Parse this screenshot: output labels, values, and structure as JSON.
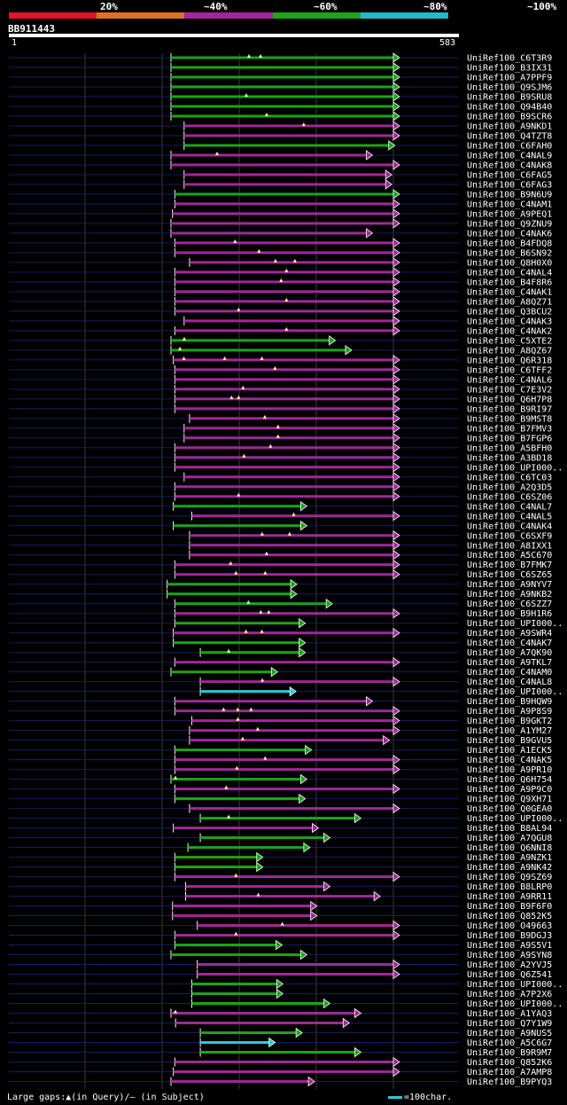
{
  "legend": {
    "segments": [
      {
        "color": "#e8112d"
      },
      {
        "color": "#e0701f"
      },
      {
        "color": "#a0289a"
      },
      {
        "color": "#1aa51a"
      },
      {
        "color": "#23b8c6"
      }
    ],
    "labels": [
      "20%",
      "~40%",
      "~60%",
      "~80%",
      "~100%"
    ]
  },
  "query": {
    "id": "BB911443",
    "start_label": "1",
    "end_label": "583",
    "length": 583
  },
  "hits": [
    {
      "name": "UniRef100_C6T3R9",
      "start": 210,
      "end": 498,
      "color": "#1aa51a",
      "marks": [
        88,
        101
      ]
    },
    {
      "name": "UniRef100_B3IX31",
      "start": 210,
      "end": 498,
      "color": "#1aa51a",
      "marks": []
    },
    {
      "name": "UniRef100_A7PPF9",
      "start": 210,
      "end": 498,
      "color": "#1aa51a",
      "marks": []
    },
    {
      "name": "UniRef100_Q9SJM6",
      "start": 210,
      "end": 498,
      "color": "#1aa51a",
      "marks": []
    },
    {
      "name": "UniRef100_B9SRU8",
      "start": 210,
      "end": 498,
      "color": "#1aa51a",
      "marks": [
        85
      ]
    },
    {
      "name": "UniRef100_Q94B40",
      "start": 210,
      "end": 498,
      "color": "#1aa51a",
      "marks": []
    },
    {
      "name": "UniRef100_B9SCR6",
      "start": 210,
      "end": 498,
      "color": "#1aa51a",
      "marks": [
        108
      ]
    },
    {
      "name": "UniRef100_A9NKD1",
      "start": 227,
      "end": 498,
      "color": "#a0289a",
      "marks": [
        135
      ]
    },
    {
      "name": "UniRef100_Q4TZT8",
      "start": 227,
      "end": 498,
      "color": "#a0289a",
      "marks": []
    },
    {
      "name": "UniRef100_C6FAH0",
      "start": 227,
      "end": 492,
      "color": "#1aa51a",
      "marks": []
    },
    {
      "name": "UniRef100_C4NAL9",
      "start": 210,
      "end": 463,
      "color": "#a0289a",
      "marks": [
        52
      ]
    },
    {
      "name": "UniRef100_C4NAK8",
      "start": 210,
      "end": 498,
      "color": "#a0289a",
      "marks": []
    },
    {
      "name": "UniRef100_C6FAG5",
      "start": 227,
      "end": 488,
      "color": "#a0289a",
      "marks": []
    },
    {
      "name": "UniRef100_C6FAG3",
      "start": 227,
      "end": 488,
      "color": "#a0289a",
      "marks": []
    },
    {
      "name": "UniRef100_B9N6U9",
      "start": 215,
      "end": 498,
      "color": "#1aa51a",
      "marks": []
    },
    {
      "name": "UniRef100_C4NAM1",
      "start": 215,
      "end": 498,
      "color": "#a0289a",
      "marks": []
    },
    {
      "name": "UniRef100_A9PEQ1",
      "start": 212,
      "end": 498,
      "color": "#a0289a",
      "marks": []
    },
    {
      "name": "UniRef100_Q9ZNU9",
      "start": 210,
      "end": 498,
      "color": "#a0289a",
      "marks": []
    },
    {
      "name": "UniRef100_C4NAK6",
      "start": 210,
      "end": 463,
      "color": "#a0289a",
      "marks": []
    },
    {
      "name": "UniRef100_B4FDQ8",
      "start": 215,
      "end": 498,
      "color": "#a0289a",
      "marks": [
        68
      ]
    },
    {
      "name": "UniRef100_B6SN92",
      "start": 215,
      "end": 498,
      "color": "#a0289a",
      "marks": [
        95
      ]
    },
    {
      "name": "UniRef100_Q8H0X0",
      "start": 234,
      "end": 498,
      "color": "#a0289a",
      "marks": [
        97,
        119
      ]
    },
    {
      "name": "UniRef100_C4NAL4",
      "start": 215,
      "end": 498,
      "color": "#a0289a",
      "marks": [
        126
      ]
    },
    {
      "name": "UniRef100_B4F8R6",
      "start": 215,
      "end": 498,
      "color": "#a0289a",
      "marks": [
        120
      ]
    },
    {
      "name": "UniRef100_C4NAK1",
      "start": 215,
      "end": 498,
      "color": "#a0289a",
      "marks": []
    },
    {
      "name": "UniRef100_A8QZ71",
      "start": 215,
      "end": 498,
      "color": "#a0289a",
      "marks": [
        126
      ]
    },
    {
      "name": "UniRef100_Q3BCU2",
      "start": 215,
      "end": 498,
      "color": "#a0289a",
      "marks": [
        72
      ]
    },
    {
      "name": "UniRef100_C4NAK3",
      "start": 227,
      "end": 498,
      "color": "#a0289a",
      "marks": []
    },
    {
      "name": "UniRef100_C4NAK2",
      "start": 215,
      "end": 498,
      "color": "#a0289a",
      "marks": [
        126
      ]
    },
    {
      "name": "UniRef100_C5XTE2",
      "start": 210,
      "end": 415,
      "color": "#1aa51a",
      "marks": [
        15
      ]
    },
    {
      "name": "UniRef100_A8QZ67",
      "start": 210,
      "end": 436,
      "color": "#1aa51a",
      "marks": [
        10
      ]
    },
    {
      "name": "UniRef100_Q6R318",
      "start": 213,
      "end": 498,
      "color": "#a0289a",
      "marks": [
        12,
        58,
        100
      ]
    },
    {
      "name": "UniRef100_C6TFF2",
      "start": 215,
      "end": 498,
      "color": "#a0289a",
      "marks": [
        113
      ]
    },
    {
      "name": "UniRef100_C4NAL6",
      "start": 215,
      "end": 498,
      "color": "#a0289a",
      "marks": []
    },
    {
      "name": "UniRef100_C7E3V2",
      "start": 215,
      "end": 498,
      "color": "#a0289a",
      "marks": [
        77
      ]
    },
    {
      "name": "UniRef100_Q6H7P8",
      "start": 215,
      "end": 498,
      "color": "#a0289a",
      "marks": [
        64,
        72
      ]
    },
    {
      "name": "UniRef100_B9RI97",
      "start": 215,
      "end": 498,
      "color": "#a0289a",
      "marks": []
    },
    {
      "name": "UniRef100_B9MST8",
      "start": 234,
      "end": 498,
      "color": "#a0289a",
      "marks": [
        85
      ]
    },
    {
      "name": "UniRef100_B7FMV3",
      "start": 227,
      "end": 498,
      "color": "#a0289a",
      "marks": [
        106
      ]
    },
    {
      "name": "UniRef100_B7FGP6",
      "start": 227,
      "end": 498,
      "color": "#a0289a",
      "marks": [
        106
      ]
    },
    {
      "name": "UniRef100_A5BFH0",
      "start": 215,
      "end": 498,
      "color": "#a0289a",
      "marks": [
        108
      ]
    },
    {
      "name": "UniRef100_A3BD18",
      "start": 215,
      "end": 498,
      "color": "#a0289a",
      "marks": [
        78
      ]
    },
    {
      "name": "UniRef100_UPI000..",
      "start": 215,
      "end": 498,
      "color": "#a0289a",
      "marks": []
    },
    {
      "name": "UniRef100_C6TC03",
      "start": 227,
      "end": 498,
      "color": "#a0289a",
      "marks": []
    },
    {
      "name": "UniRef100_A2Q3D5",
      "start": 215,
      "end": 498,
      "color": "#a0289a",
      "marks": []
    },
    {
      "name": "UniRef100_C6SZ06",
      "start": 215,
      "end": 498,
      "color": "#a0289a",
      "marks": [
        72
      ]
    },
    {
      "name": "UniRef100_C4NAL7",
      "start": 213,
      "end": 378,
      "color": "#1aa51a",
      "marks": []
    },
    {
      "name": "UniRef100_C4NAL5",
      "start": 237,
      "end": 498,
      "color": "#a0289a",
      "marks": [
        115
      ]
    },
    {
      "name": "UniRef100_C4NAK4",
      "start": 213,
      "end": 378,
      "color": "#1aa51a",
      "marks": []
    },
    {
      "name": "UniRef100_C6SXF9",
      "start": 234,
      "end": 498,
      "color": "#a0289a",
      "marks": [
        82,
        113
      ]
    },
    {
      "name": "UniRef100_A8IXX1",
      "start": 234,
      "end": 498,
      "color": "#a0289a",
      "marks": []
    },
    {
      "name": "UniRef100_A5C670",
      "start": 234,
      "end": 498,
      "color": "#a0289a",
      "marks": [
        87
      ]
    },
    {
      "name": "UniRef100_B7FMK7",
      "start": 215,
      "end": 498,
      "color": "#a0289a",
      "marks": [
        63
      ]
    },
    {
      "name": "UniRef100_C6SZ65",
      "start": 215,
      "end": 498,
      "color": "#a0289a",
      "marks": [
        69,
        102
      ]
    },
    {
      "name": "UniRef100_A9NYV7",
      "start": 205,
      "end": 365,
      "color": "#1aa51a",
      "marks": []
    },
    {
      "name": "UniRef100_A9NKB2",
      "start": 205,
      "end": 365,
      "color": "#1aa51a",
      "marks": []
    },
    {
      "name": "UniRef100_C6SZZ7",
      "start": 215,
      "end": 411,
      "color": "#1aa51a",
      "marks": [
        83
      ]
    },
    {
      "name": "UniRef100_B9H1R6",
      "start": 215,
      "end": 498,
      "color": "#a0289a",
      "marks": [
        97,
        106
      ]
    },
    {
      "name": "UniRef100_UPI000..",
      "start": 215,
      "end": 376,
      "color": "#1aa51a",
      "marks": []
    },
    {
      "name": "UniRef100_A9SWR4",
      "start": 213,
      "end": 498,
      "color": "#a0289a",
      "marks": [
        82,
        100
      ]
    },
    {
      "name": "UniRef100_C4NAK7",
      "start": 213,
      "end": 376,
      "color": "#1aa51a",
      "marks": []
    },
    {
      "name": "UniRef100_A7QK90",
      "start": 248,
      "end": 376,
      "color": "#1aa51a",
      "marks": [
        32
      ]
    },
    {
      "name": "UniRef100_A9TKL7",
      "start": 215,
      "end": 498,
      "color": "#a0289a",
      "marks": []
    },
    {
      "name": "UniRef100_C4NAM0",
      "start": 210,
      "end": 340,
      "color": "#1aa51a",
      "marks": []
    },
    {
      "name": "UniRef100_C4NAL8",
      "start": 248,
      "end": 498,
      "color": "#a0289a",
      "marks": [
        70
      ]
    },
    {
      "name": "UniRef100_UPI000..",
      "start": 248,
      "end": 364,
      "color": "#2ec8d8",
      "marks": []
    },
    {
      "name": "UniRef100_B9HQW9",
      "start": 215,
      "end": 463,
      "color": "#a0289a",
      "marks": []
    },
    {
      "name": "UniRef100_A9P8S9",
      "start": 215,
      "end": 498,
      "color": "#a0289a",
      "marks": [
        55,
        71,
        86
      ]
    },
    {
      "name": "UniRef100_B9GKT2",
      "start": 237,
      "end": 498,
      "color": "#a0289a",
      "marks": [
        52
      ]
    },
    {
      "name": "UniRef100_A1YM27",
      "start": 234,
      "end": 498,
      "color": "#a0289a",
      "marks": [
        77
      ]
    },
    {
      "name": "UniRef100_B9GVU5",
      "start": 234,
      "end": 485,
      "color": "#a0289a",
      "marks": [
        60
      ]
    },
    {
      "name": "UniRef100_A1ECK5",
      "start": 215,
      "end": 384,
      "color": "#1aa51a",
      "marks": []
    },
    {
      "name": "UniRef100_C4NAK5",
      "start": 215,
      "end": 498,
      "color": "#a0289a",
      "marks": [
        102
      ]
    },
    {
      "name": "UniRef100_A9PR10",
      "start": 215,
      "end": 498,
      "color": "#a0289a",
      "marks": [
        70
      ]
    },
    {
      "name": "UniRef100_Q6H754",
      "start": 210,
      "end": 378,
      "color": "#1aa51a",
      "marks": [
        5
      ]
    },
    {
      "name": "UniRef100_A9P9C0",
      "start": 215,
      "end": 498,
      "color": "#a0289a",
      "marks": [
        58
      ]
    },
    {
      "name": "UniRef100_Q9XH71",
      "start": 215,
      "end": 376,
      "color": "#1aa51a",
      "marks": []
    },
    {
      "name": "UniRef100_Q0GEA0",
      "start": 234,
      "end": 498,
      "color": "#a0289a",
      "marks": []
    },
    {
      "name": "UniRef100_UPI000..",
      "start": 248,
      "end": 448,
      "color": "#1aa51a",
      "marks": [
        32
      ]
    },
    {
      "name": "UniRef100_B8AL94",
      "start": 213,
      "end": 393,
      "color": "#a0289a",
      "marks": []
    },
    {
      "name": "UniRef100_A7QGU8",
      "start": 248,
      "end": 408,
      "color": "#1aa51a",
      "marks": []
    },
    {
      "name": "UniRef100_Q6NNI8",
      "start": 232,
      "end": 382,
      "color": "#1aa51a",
      "marks": []
    },
    {
      "name": "UniRef100_A9NZK1",
      "start": 215,
      "end": 321,
      "color": "#1aa51a",
      "marks": []
    },
    {
      "name": "UniRef100_A9NK42",
      "start": 215,
      "end": 321,
      "color": "#1aa51a",
      "marks": []
    },
    {
      "name": "UniRef100_Q9SZ69",
      "start": 215,
      "end": 498,
      "color": "#a0289a",
      "marks": [
        69
      ]
    },
    {
      "name": "UniRef100_B8LRP0",
      "start": 229,
      "end": 408,
      "color": "#a0289a",
      "marks": []
    },
    {
      "name": "UniRef100_A9RR11",
      "start": 229,
      "end": 473,
      "color": "#a0289a",
      "marks": [
        82
      ]
    },
    {
      "name": "UniRef100_B9F6F0",
      "start": 212,
      "end": 391,
      "color": "#a0289a",
      "marks": []
    },
    {
      "name": "UniRef100_Q852K5",
      "start": 212,
      "end": 391,
      "color": "#a0289a",
      "marks": []
    },
    {
      "name": "UniRef100_O49663",
      "start": 244,
      "end": 498,
      "color": "#a0289a",
      "marks": [
        96
      ]
    },
    {
      "name": "UniRef100_B9DGJ3",
      "start": 215,
      "end": 498,
      "color": "#a0289a",
      "marks": [
        69
      ]
    },
    {
      "name": "UniRef100_A9S5V1",
      "start": 215,
      "end": 346,
      "color": "#1aa51a",
      "marks": []
    },
    {
      "name": "UniRef100_A9SYN8",
      "start": 210,
      "end": 378,
      "color": "#1aa51a",
      "marks": []
    },
    {
      "name": "UniRef100_A2YVJ5",
      "start": 244,
      "end": 498,
      "color": "#a0289a",
      "marks": []
    },
    {
      "name": "UniRef100_Q6Z541",
      "start": 244,
      "end": 498,
      "color": "#a0289a",
      "marks": []
    },
    {
      "name": "UniRef100_UPI000..",
      "start": 237,
      "end": 347,
      "color": "#1aa51a",
      "marks": []
    },
    {
      "name": "UniRef100_A7P2X6",
      "start": 237,
      "end": 347,
      "color": "#1aa51a",
      "marks": []
    },
    {
      "name": "UniRef100_UPI000..",
      "start": 237,
      "end": 408,
      "color": "#1aa51a",
      "marks": []
    },
    {
      "name": "UniRef100_A1YAQ3",
      "start": 210,
      "end": 448,
      "color": "#a0289a",
      "marks": [
        5
      ]
    },
    {
      "name": "UniRef100_Q7Y1W9",
      "start": 216,
      "end": 433,
      "color": "#a0289a",
      "marks": []
    },
    {
      "name": "UniRef100_A9NUS5",
      "start": 248,
      "end": 372,
      "color": "#1aa51a",
      "marks": []
    },
    {
      "name": "UniRef100_A5C6G7",
      "start": 248,
      "end": 337,
      "color": "#2ec8d8",
      "marks": []
    },
    {
      "name": "UniRef100_B9R9M7",
      "start": 248,
      "end": 448,
      "color": "#1aa51a",
      "marks": []
    },
    {
      "name": "UniRef100_Q852K6",
      "start": 215,
      "end": 498,
      "color": "#a0289a",
      "marks": []
    },
    {
      "name": "UniRef100_A7AMP8",
      "start": 213,
      "end": 498,
      "color": "#a0289a",
      "marks": []
    },
    {
      "name": "UniRef100_B9PYQ3",
      "start": 210,
      "end": 388,
      "color": "#a0289a",
      "marks": []
    }
  ],
  "footer": {
    "text": "Large gaps:▲(in Query)/– (in Subject)",
    "scale_text": "=100char."
  }
}
